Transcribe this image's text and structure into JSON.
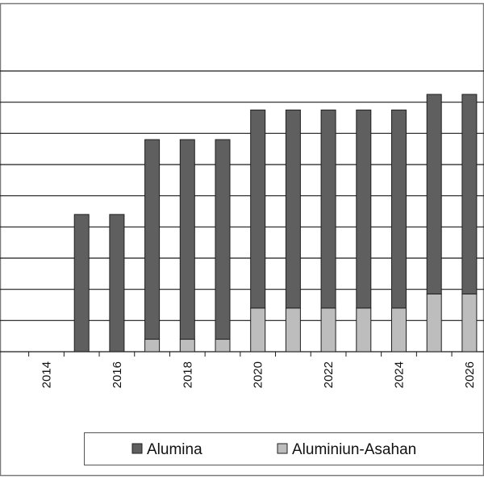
{
  "chart_data": {
    "type": "bar",
    "stacked": true,
    "categories": [
      "2014",
      "2015",
      "2016",
      "2017",
      "2018",
      "2019",
      "2020",
      "2021",
      "2022",
      "2023",
      "2024",
      "2025",
      "2026"
    ],
    "x_tick_labels": [
      "2014",
      "",
      "2016",
      "",
      "2018",
      "",
      "2020",
      "",
      "2022",
      "",
      "2024",
      "",
      "2026"
    ],
    "series": [
      {
        "name": "Aluminiun-Asahan",
        "color": "#bdbdbd",
        "values": [
          0,
          0,
          0,
          0.4,
          0.4,
          0.4,
          1.4,
          1.4,
          1.4,
          1.4,
          1.4,
          1.85,
          1.85
        ]
      },
      {
        "name": "Alumina",
        "color": "#5f5f5f",
        "values": [
          0,
          4.4,
          4.4,
          6.4,
          6.4,
          6.4,
          6.35,
          6.35,
          6.35,
          6.35,
          6.35,
          6.4,
          6.4
        ]
      }
    ],
    "ylim": [
      0,
      9
    ],
    "y_gridlines": 9,
    "grid": true,
    "legend_position": "bottom",
    "legend": [
      "Alumina",
      "Aluminiun-Asahan"
    ],
    "title": "",
    "xlabel": "",
    "ylabel": ""
  }
}
